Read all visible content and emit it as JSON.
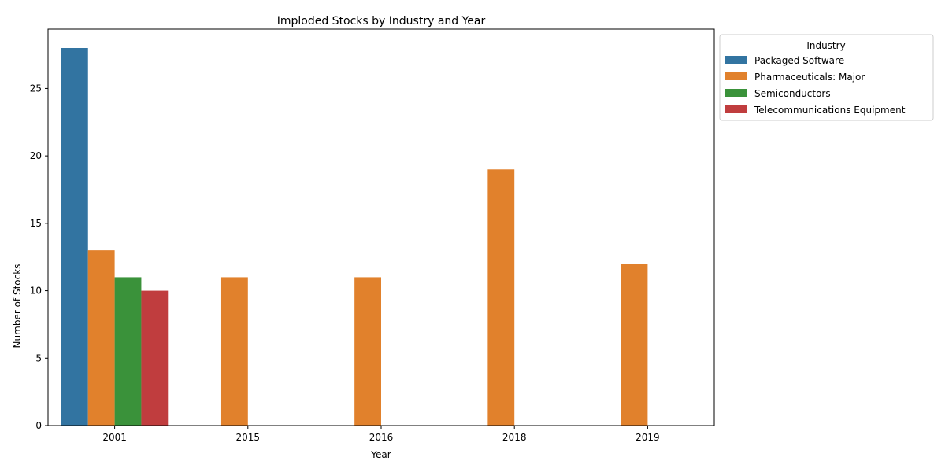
{
  "chart_data": {
    "type": "bar",
    "title": "Imploded Stocks by Industry and Year",
    "xlabel": "Year",
    "ylabel": "Number of Stocks",
    "ylim": [
      0,
      29.4
    ],
    "yticks": [
      0,
      5,
      10,
      15,
      20,
      25
    ],
    "categories": [
      "2001",
      "2015",
      "2016",
      "2018",
      "2019"
    ],
    "legend": {
      "title": "Industry",
      "placement": "outside upper right"
    },
    "grid": false,
    "series": [
      {
        "name": "Packaged Software",
        "color": "#3274a1",
        "values": [
          28,
          null,
          null,
          null,
          null
        ]
      },
      {
        "name": "Pharmaceuticals: Major",
        "color": "#e1812c",
        "values": [
          13,
          11,
          11,
          19,
          12
        ]
      },
      {
        "name": "Semiconductors",
        "color": "#3a923a",
        "values": [
          11,
          null,
          null,
          null,
          null
        ]
      },
      {
        "name": "Telecommunications Equipment",
        "color": "#c03d3e",
        "values": [
          10,
          null,
          null,
          null,
          null
        ]
      }
    ]
  }
}
